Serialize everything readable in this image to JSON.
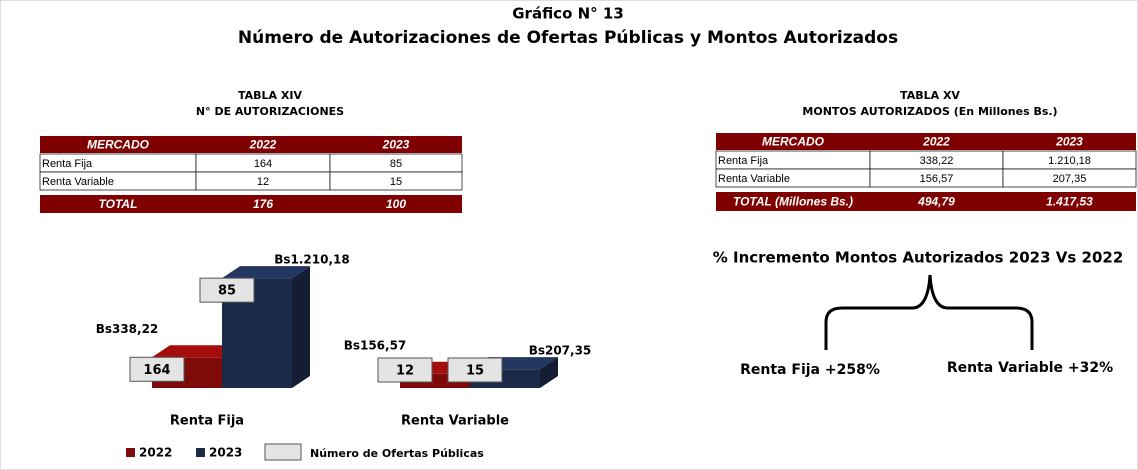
{
  "header": {
    "title": "Gráfico N° 13",
    "subtitle": "Número de Autorizaciones de Ofertas Públicas y Montos Autorizados"
  },
  "table_xiv": {
    "title": "TABLA XIV",
    "subtitle": "N° DE AUTORIZACIONES",
    "columns": [
      "MERCADO",
      "2022",
      "2023"
    ],
    "rows": [
      [
        "Renta Fija",
        "164",
        "85"
      ],
      [
        "Renta Variable",
        "12",
        "15"
      ]
    ],
    "total": [
      "TOTAL",
      "176",
      "100"
    ]
  },
  "table_xv": {
    "title": "TABLA XV",
    "subtitle": "MONTOS AUTORIZADOS (En Millones Bs.)",
    "columns": [
      "MERCADO",
      "2022",
      "2023"
    ],
    "rows": [
      [
        "Renta Fija",
        "338,22",
        "1.210,18"
      ],
      [
        "Renta Variable",
        "156,57",
        "207,35"
      ]
    ],
    "total": [
      "TOTAL (Millones Bs.)",
      "494,79",
      "1.417,53"
    ]
  },
  "chart_data": {
    "type": "bar3d",
    "categories": [
      "Renta Fija",
      "Renta Variable"
    ],
    "ylim": [
      0,
      1300
    ],
    "series": [
      {
        "name": "2022",
        "color": "#7f0a0a",
        "values": [
          338.22,
          156.57
        ],
        "value_labels": [
          "Bs338,22",
          "Bs156,57"
        ],
        "counts": [
          164,
          12
        ]
      },
      {
        "name": "2023",
        "color": "#1c2a4a",
        "values": [
          1210.18,
          207.35
        ],
        "value_labels": [
          "Bs1.210,18",
          "Bs207,35"
        ],
        "counts": [
          85,
          15
        ]
      }
    ],
    "count_legend": "Número de Ofertas Públicas"
  },
  "increment": {
    "title": "% Incremento Montos Autorizados 2023 Vs 2022",
    "items": [
      "Renta Fija +258%",
      "Renta Variable +32%"
    ]
  }
}
